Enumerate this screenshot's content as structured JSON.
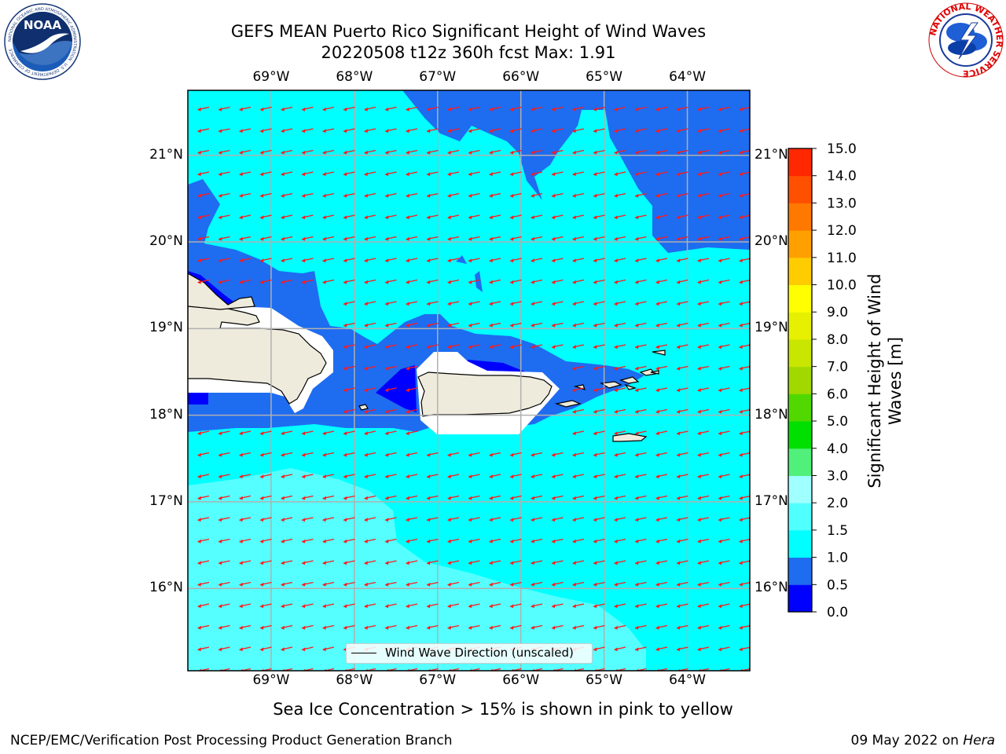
{
  "header": {
    "title_line1": "GEFS MEAN Puerto Rico Significant Height of Wind Waves",
    "title_line2": "20220508 t12z 360h fcst   Max: 1.91"
  },
  "logos": {
    "left": {
      "name": "NOAA",
      "text": "NOAA",
      "ring_text": "NATIONAL OCEANIC AND ATMOSPHERIC ADMINISTRATION · U.S. DEPARTMENT OF COMMERCE"
    },
    "right": {
      "name": "National Weather Service",
      "ring_text": "NATIONAL WEATHER SERVICE"
    }
  },
  "map": {
    "lon_ticks": [
      "69°W",
      "68°W",
      "67°W",
      "66°W",
      "65°W",
      "64°W"
    ],
    "lat_ticks": [
      "21°N",
      "20°N",
      "19°N",
      "18°N",
      "17°N",
      "16°N"
    ],
    "lon_values": [
      -69,
      -68,
      -67,
      -66,
      -65,
      -64
    ],
    "lat_values": [
      21,
      20,
      19,
      18,
      17,
      16
    ],
    "extent": {
      "lon": [
        -70,
        -63.25
      ],
      "lat": [
        15.05,
        21.75
      ]
    },
    "gridlines": true,
    "arrow_color": "#ff1a1a",
    "arrow_direction": "from east, pointing west-southwest",
    "legend_label": "Wind Wave Direction (unscaled)",
    "legend_location": "bottom-center"
  },
  "colorbar": {
    "title": "Significant Height of Wind Waves [m]",
    "ticks": [
      "0.0",
      "0.5",
      "1.0",
      "1.5",
      "2.0",
      "3.0",
      "4.0",
      "5.0",
      "6.0",
      "7.0",
      "8.0",
      "9.0",
      "10.0",
      "11.0",
      "12.0",
      "13.0",
      "14.0",
      "15.0"
    ],
    "colors": [
      "#0000ff",
      "#1e6cf0",
      "#00ffff",
      "#50ffff",
      "#a0ffff",
      "#50f07a",
      "#00e000",
      "#50d800",
      "#a0d800",
      "#c8e600",
      "#e6f000",
      "#ffff00",
      "#ffcc00",
      "#ffa000",
      "#ff7800",
      "#ff5000",
      "#ff2800",
      "#ff0000"
    ]
  },
  "footer": {
    "subtitle": "Sea Ice Concentration > 15% is shown in pink to yellow",
    "credit": "NCEP/EMC/Verification Post Processing Product Generation Branch",
    "date": "09 May 2022 on",
    "host": "Hera"
  }
}
